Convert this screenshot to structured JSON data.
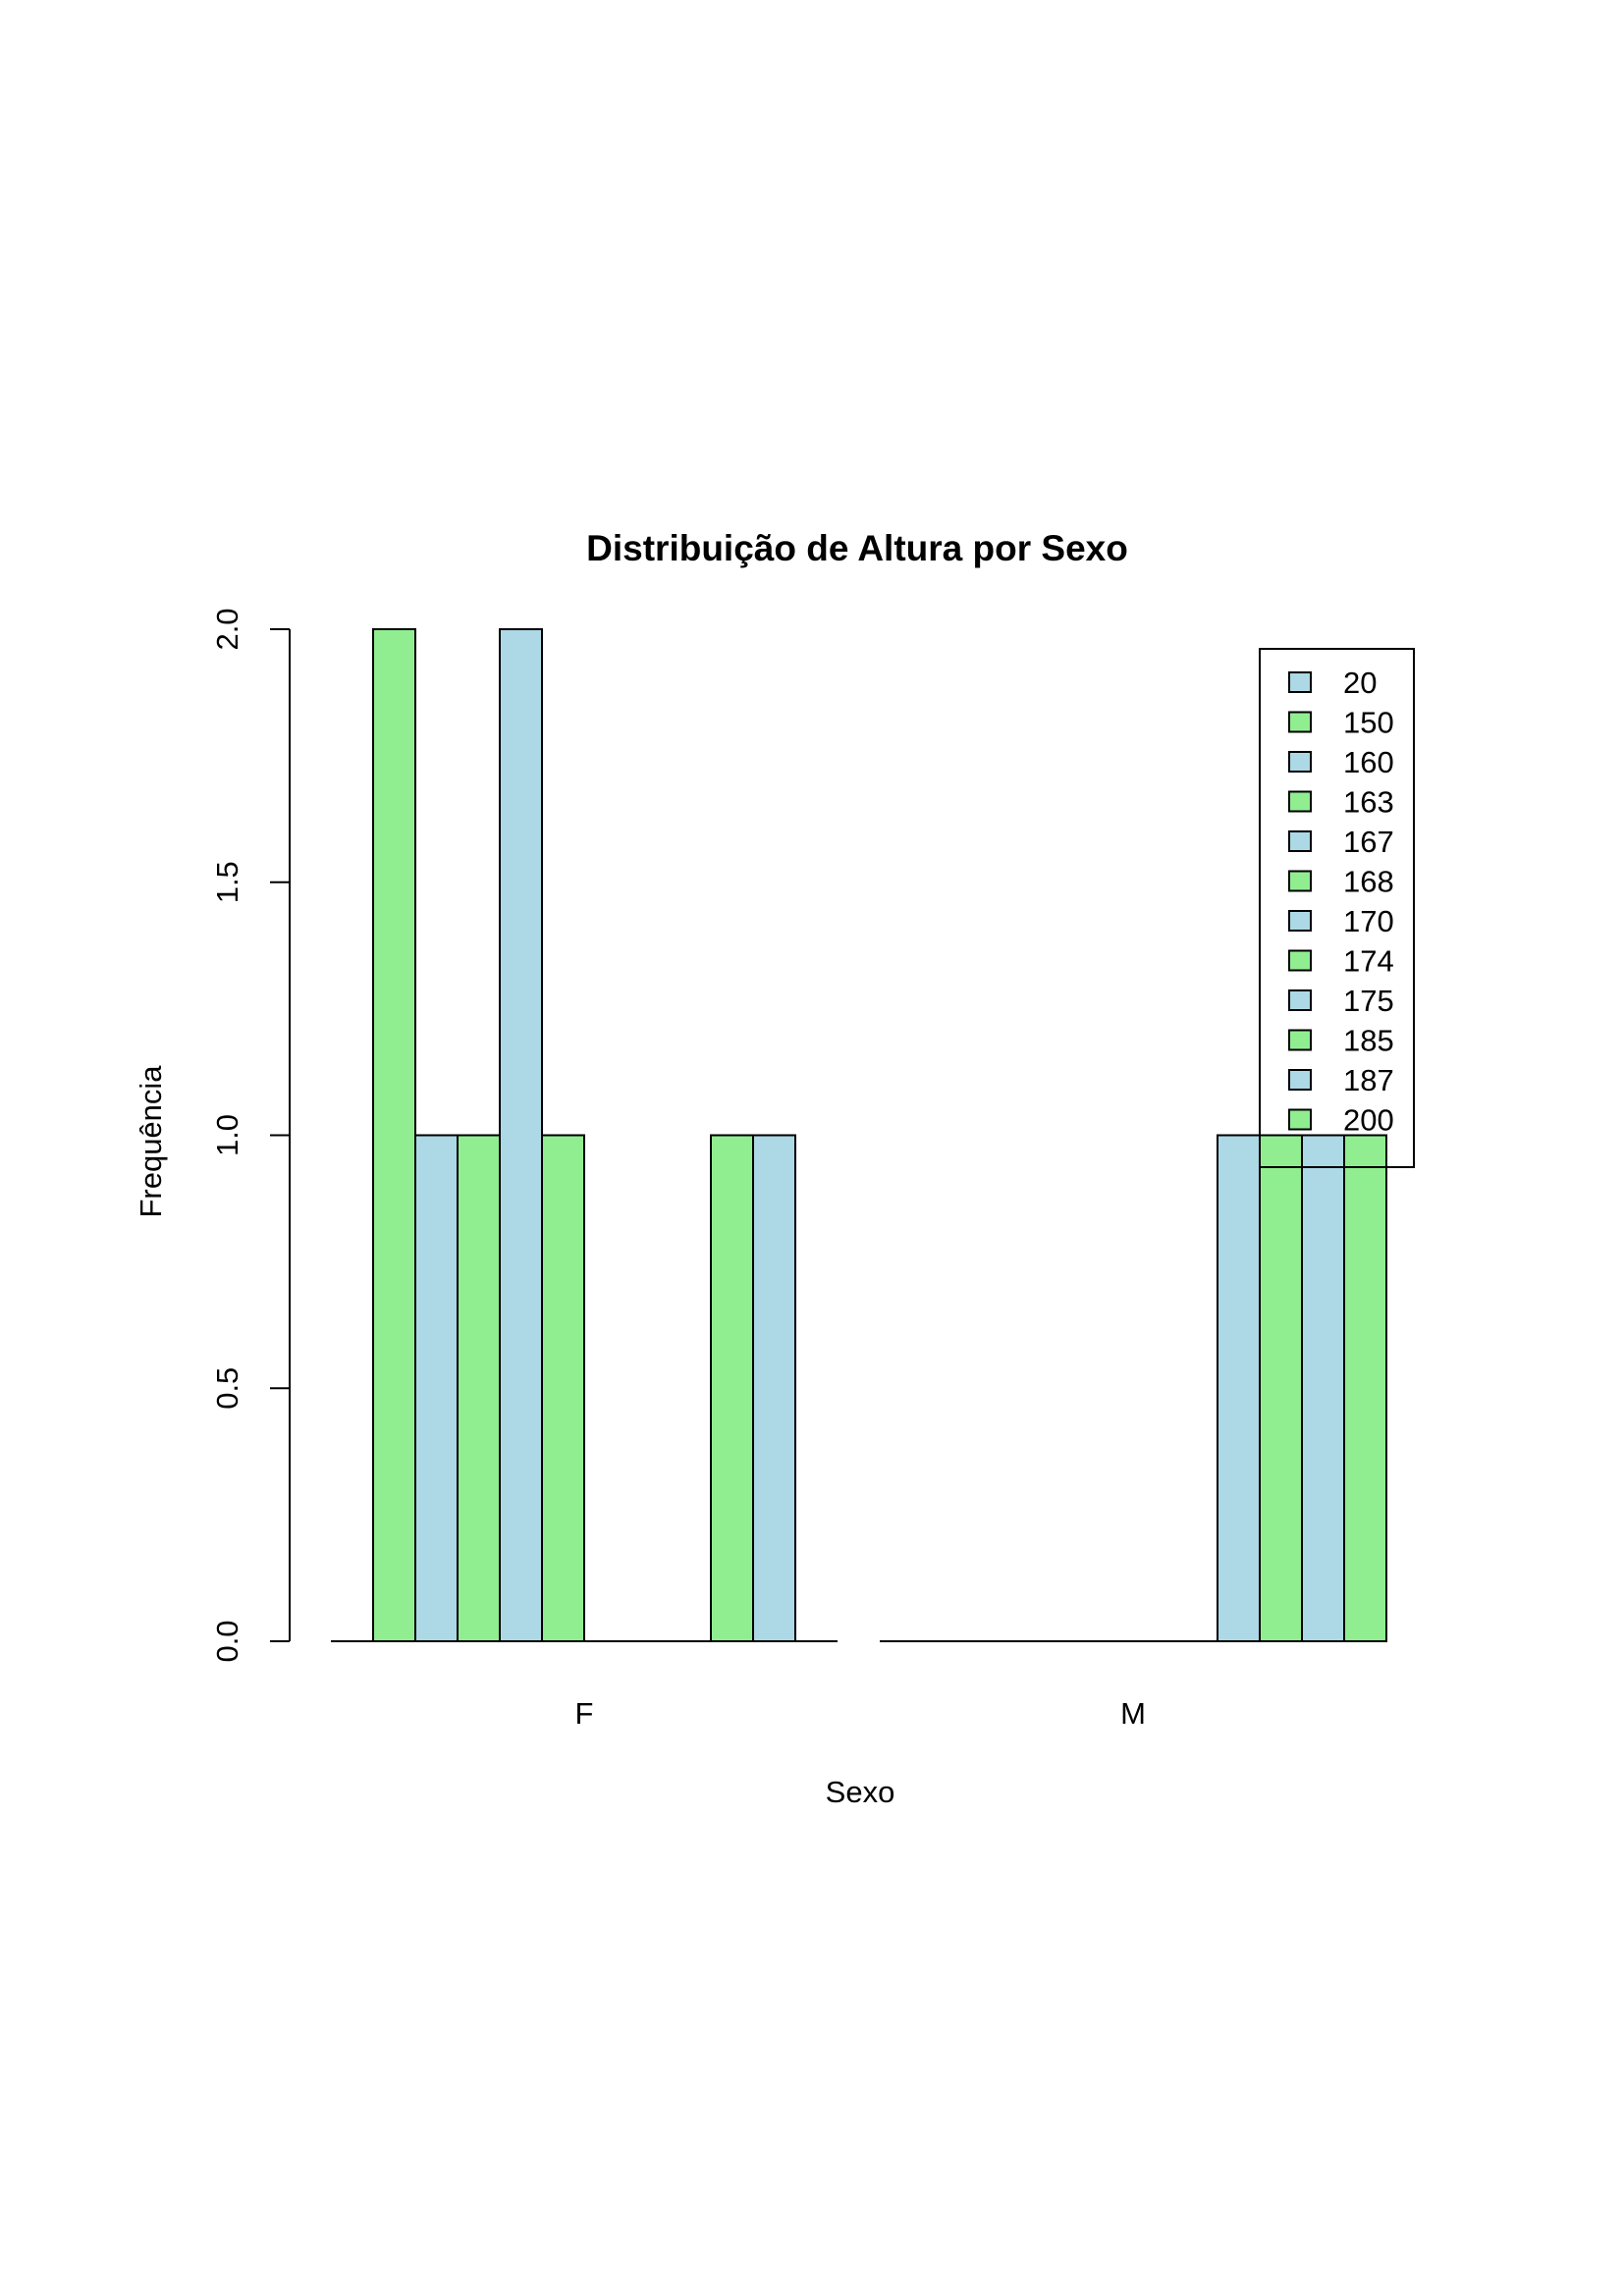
{
  "chart_data": {
    "type": "bar",
    "title": "Distribuição de Altura por Sexo",
    "xlabel": "Sexo",
    "ylabel": "Frequência",
    "ylim": [
      0,
      2
    ],
    "yticks": [
      "0.0",
      "0.5",
      "1.0",
      "1.5",
      "2.0"
    ],
    "grid": false,
    "legend_position": "top-right",
    "categories": [
      "F",
      "M"
    ],
    "series": [
      {
        "name": "20",
        "color": "#add8e6",
        "values": [
          0,
          0
        ]
      },
      {
        "name": "150",
        "color": "#90ee90",
        "values": [
          2,
          0
        ]
      },
      {
        "name": "160",
        "color": "#add8e6",
        "values": [
          1,
          0
        ]
      },
      {
        "name": "163",
        "color": "#90ee90",
        "values": [
          1,
          0
        ]
      },
      {
        "name": "167",
        "color": "#add8e6",
        "values": [
          2,
          0
        ]
      },
      {
        "name": "168",
        "color": "#90ee90",
        "values": [
          1,
          0
        ]
      },
      {
        "name": "170",
        "color": "#add8e6",
        "values": [
          0,
          0
        ]
      },
      {
        "name": "174",
        "color": "#90ee90",
        "values": [
          0,
          0
        ]
      },
      {
        "name": "175",
        "color": "#add8e6",
        "values": [
          0,
          1
        ]
      },
      {
        "name": "185",
        "color": "#90ee90",
        "values": [
          1,
          1
        ]
      },
      {
        "name": "187",
        "color": "#add8e6",
        "values": [
          1,
          1
        ]
      },
      {
        "name": "200",
        "color": "#90ee90",
        "values": [
          0,
          1
        ]
      }
    ]
  }
}
